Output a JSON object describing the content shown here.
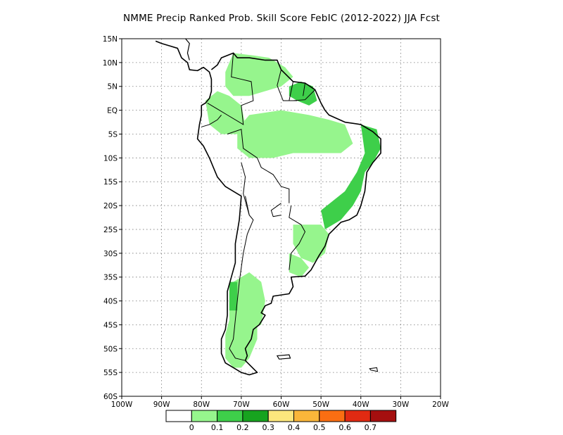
{
  "title": "NMME Precip Ranked Prob. Skill Score FebIC (2012-2022) JJA Fcst",
  "map": {
    "type": "map",
    "projection": "equirectangular",
    "lon_range": [
      -100,
      -20
    ],
    "lat_range": [
      -60,
      15
    ],
    "lat_ticks": [
      "15N",
      "10N",
      "5N",
      "EQ",
      "5S",
      "10S",
      "15S",
      "20S",
      "25S",
      "30S",
      "35S",
      "40S",
      "45S",
      "50S",
      "55S",
      "60S"
    ],
    "lon_ticks": [
      "100W",
      "90W",
      "80W",
      "70W",
      "60W",
      "50W",
      "40W",
      "30W",
      "20W"
    ],
    "grid": "dotted",
    "land_fill": "#ffffff",
    "coastline_color": "#000000"
  },
  "colorbar": {
    "boundaries": [
      "0",
      "0.1",
      "0.2",
      "0.3",
      "0.4",
      "0.5",
      "0.6",
      "0.7"
    ],
    "colors": [
      "#ffffff",
      "#96f58d",
      "#3ecf4a",
      "#17a31f",
      "#fce67d",
      "#fab63a",
      "#fa6e12",
      "#e12a12",
      "#a50f0f"
    ]
  },
  "skill_regions": [
    {
      "name": "northern-colombia-venezuela",
      "level": 1
    },
    {
      "name": "amazon-west",
      "level": 1
    },
    {
      "name": "amazon-central",
      "level": 1
    },
    {
      "name": "guiana-east",
      "level": 2
    },
    {
      "name": "ne-brazil-coast",
      "level": 2
    },
    {
      "name": "southern-andes",
      "level": 1
    },
    {
      "name": "patagonia",
      "level": 1
    },
    {
      "name": "chile-central",
      "level": 2
    },
    {
      "name": "se-brazil",
      "level": 1
    },
    {
      "name": "uruguay",
      "level": 1
    }
  ]
}
